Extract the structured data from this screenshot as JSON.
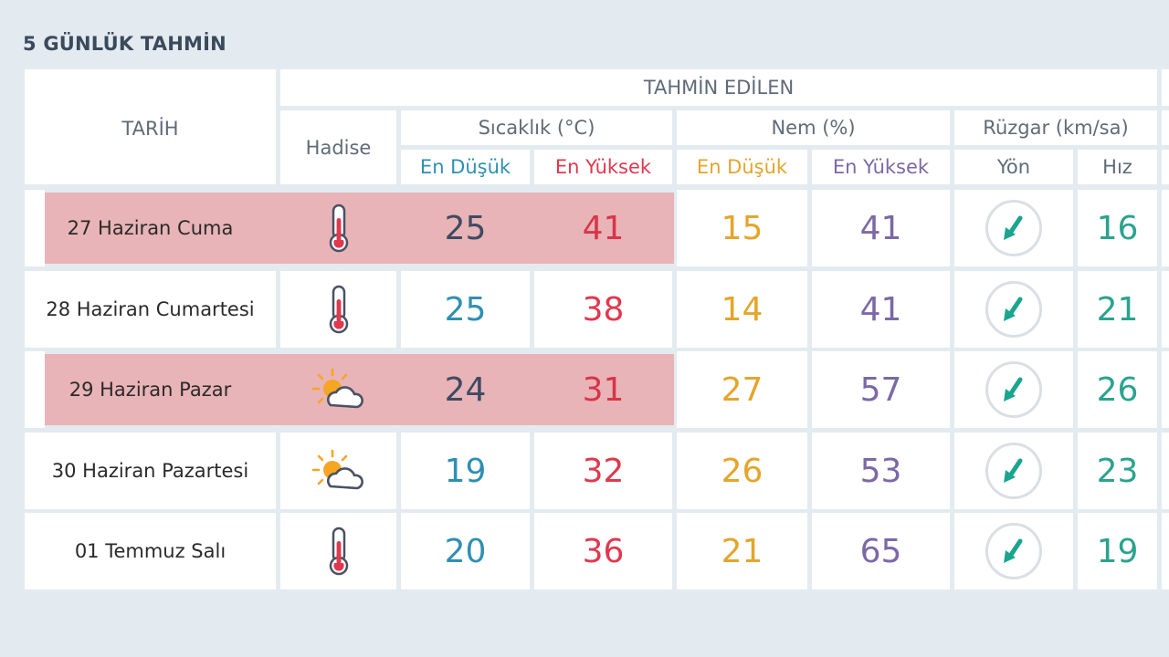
{
  "page": {
    "title": "5 GÜNLÜK TAHMİN"
  },
  "header": {
    "tarih": "TARİH",
    "tahmin": "TAHMİN EDİLEN",
    "hadise": "Hadise",
    "sicaklik": "Sıcaklık (°C)",
    "nem": "Nem (%)",
    "ruzgar": "Rüzgar (km/sa)",
    "en_dusuk": "En Düşük",
    "en_yuksek": "En Yüksek",
    "yon": "Yön",
    "hiz": "Hız"
  },
  "colors": {
    "background": "#e3ebf0",
    "highlight": "#e8b4b7",
    "temp_min": "#2f8fb3",
    "temp_max": "#e0384e",
    "humidity_min": "#e4a52a",
    "humidity_max": "#7c68a6",
    "wind_speed": "#2aa38e",
    "wind_arrow": "#1aa58f"
  },
  "rows": [
    {
      "date": "27 Haziran Cuma",
      "icon": "thermometer-icon",
      "temp_min": "25",
      "temp_max": "41",
      "hum_min": "15",
      "hum_max": "41",
      "wind_dir": "southwest-arrow-icon",
      "wind_speed": "16",
      "highlighted": true
    },
    {
      "date": "28 Haziran Cumartesi",
      "icon": "thermometer-icon",
      "temp_min": "25",
      "temp_max": "38",
      "hum_min": "14",
      "hum_max": "41",
      "wind_dir": "southwest-arrow-icon",
      "wind_speed": "21",
      "highlighted": false
    },
    {
      "date": "29 Haziran Pazar",
      "icon": "partly-cloudy-icon",
      "temp_min": "24",
      "temp_max": "31",
      "hum_min": "27",
      "hum_max": "57",
      "wind_dir": "southwest-arrow-icon",
      "wind_speed": "26",
      "highlighted": true
    },
    {
      "date": "30 Haziran Pazartesi",
      "icon": "partly-cloudy-icon",
      "temp_min": "19",
      "temp_max": "32",
      "hum_min": "26",
      "hum_max": "53",
      "wind_dir": "southwest-arrow-icon",
      "wind_speed": "23",
      "highlighted": false
    },
    {
      "date": "01 Temmuz Salı",
      "icon": "thermometer-icon",
      "temp_min": "20",
      "temp_max": "36",
      "hum_min": "21",
      "hum_max": "65",
      "wind_dir": "southwest-arrow-icon",
      "wind_speed": "19",
      "highlighted": false
    }
  ]
}
